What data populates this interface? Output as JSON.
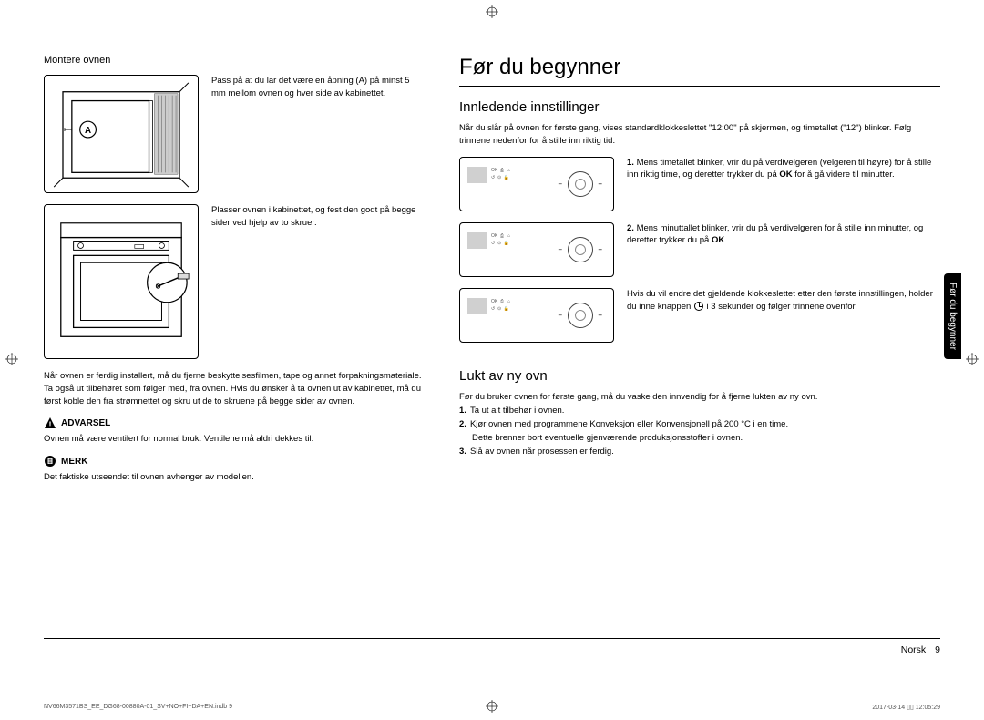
{
  "page_title": "Før du begynner",
  "side_tab": "Før du begynner",
  "footer": {
    "lang": "Norsk",
    "page": "9"
  },
  "print": {
    "left": "NV66M3571BS_EE_DG68-00880A-01_SV+NO+FI+DA+EN.indb   9",
    "right": "2017-03-14   ▯▯ 12:05:29"
  },
  "left": {
    "mount_heading": "Montere ovnen",
    "fig1_text": "Pass på at du lar det være en åpning (A) på minst 5 mm mellom ovnen og hver side av kabinettet.",
    "fig1_label_A": "A",
    "fig2_text": "Plasser ovnen i kabinettet, og fest den godt på begge sider ved hjelp av to skruer.",
    "para_after": "Når ovnen er ferdig installert, må du fjerne beskyttelsesfilmen, tape og annet forpakningsmateriale. Ta også ut tilbehøret som følger med, fra ovnen. Hvis du ønsker å ta ovnen ut av kabinettet, må du først koble den fra strømnettet og skru ut de to skruene på begge sider av ovnen.",
    "warn_label": "ADVARSEL",
    "warn_text": "Ovnen må være ventilert for normal bruk. Ventilene må aldri dekkes til.",
    "note_label": "MERK",
    "note_text": "Det faktiske utseendet til ovnen avhenger av modellen."
  },
  "right": {
    "h2_initial": "Innledende innstillinger",
    "intro": "Når du slår på ovnen for første gang, vises standardklokkeslettet \"12:00\" på skjermen, og timetallet (\"12\") blinker. Følg trinnene nedenfor for å stille inn riktig tid.",
    "step1_num": "1.",
    "step1": "Mens timetallet blinker, vrir du på verdivelgeren (velgeren til høyre) for å stille inn riktig time, og deretter trykker du på OK for å gå videre til minutter.",
    "step2_num": "2.",
    "step2": "Mens minuttallet blinker, vrir du på verdivelgeren for å stille inn minutter, og deretter trykker du på OK.",
    "step3_pre": "Hvis du vil endre det gjeldende klokkeslettet etter den første innstillingen, holder du inne knappen ",
    "step3_post": " i 3 sekunder og følger trinnene ovenfor.",
    "panel_ok": "OK",
    "h2_smell": "Lukt av ny ovn",
    "smell_intro": "Før du bruker ovnen for første gang, må du vaske den innvendig for å fjerne lukten av ny ovn.",
    "smell_1n": "1.",
    "smell_1": "Ta ut alt tilbehør i ovnen.",
    "smell_2n": "2.",
    "smell_2": "Kjør ovnen med programmene Konveksjon eller Konvensjonell på 200 °C i en time.",
    "smell_2b": "Dette brenner bort eventuelle gjenværende produksjonsstoffer i ovnen.",
    "smell_3n": "3.",
    "smell_3": "Slå av ovnen når prosessen er ferdig."
  },
  "colors": {
    "text": "#000000",
    "bg": "#ffffff",
    "tab_bg": "#000000",
    "tab_fg": "#ffffff",
    "panel_gray": "#d0d0d0"
  }
}
